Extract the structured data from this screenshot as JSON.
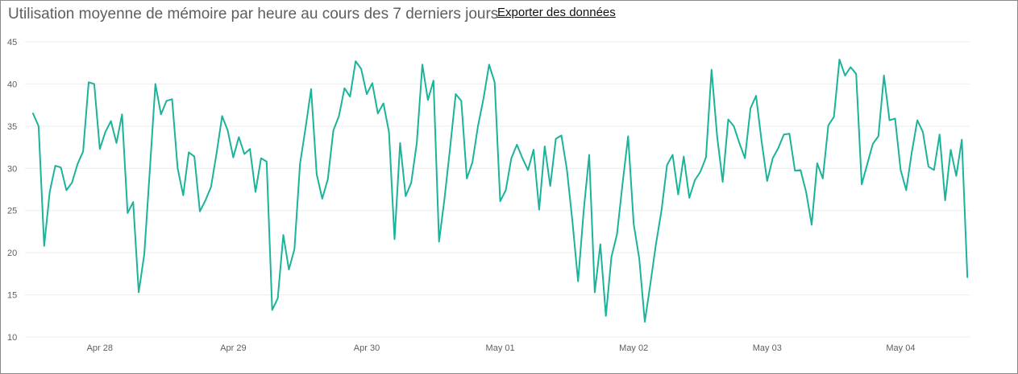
{
  "header": {
    "title": "Utilisation moyenne de mémoire par heure au cours des 7 derniers jours",
    "export_label": "Exporter des données"
  },
  "colors": {
    "line": "#1bb39a",
    "gridline": "#ececec",
    "axis_text": "#605e5c",
    "border": "#8a8a8a"
  },
  "chart_data": {
    "type": "line",
    "title": "Utilisation moyenne de mémoire par heure au cours des 7 derniers jours",
    "xlabel": "",
    "ylabel": "",
    "ylim": [
      10,
      45
    ],
    "yticks": [
      10,
      15,
      20,
      25,
      30,
      35,
      40,
      45
    ],
    "grid": true,
    "x_tick_labels": [
      {
        "label": "Apr 28",
        "x": 12
      },
      {
        "label": "Apr 29",
        "x": 36
      },
      {
        "label": "Apr 30",
        "x": 60
      },
      {
        "label": "May 01",
        "x": 84
      },
      {
        "label": "May 02",
        "x": 108
      },
      {
        "label": "May 03",
        "x": 132
      },
      {
        "label": "May 04",
        "x": 156
      }
    ],
    "x_unit": "hours since start of series (hourly samples)",
    "series": [
      {
        "values": [
          36.5,
          35.0,
          20.8,
          27.2,
          30.3,
          30.1,
          27.4,
          28.3,
          30.5,
          32.0,
          40.2,
          40.0,
          32.3,
          34.3,
          35.6,
          33.0,
          36.4,
          24.7,
          26.0,
          15.3,
          19.8,
          29.8,
          40.0,
          36.4,
          38.0,
          38.2,
          30.0,
          26.8,
          31.9,
          31.4,
          24.9,
          26.2,
          27.8,
          31.8,
          36.2,
          34.5,
          31.3,
          33.7,
          31.7,
          32.3,
          27.2,
          31.2,
          30.8,
          13.2,
          14.6,
          22.1,
          18.0,
          20.4,
          30.5,
          34.8,
          39.4,
          29.3,
          26.4,
          28.7,
          34.5,
          36.2,
          39.5,
          38.5,
          42.7,
          41.8,
          38.8,
          40.1,
          36.5,
          37.7,
          34.3,
          21.6,
          33.0,
          26.7,
          28.3,
          33.0,
          42.3,
          38.1,
          40.4,
          21.3,
          26.5,
          32.5,
          38.8,
          38.0,
          28.8,
          30.7,
          35.0,
          38.3,
          42.3,
          40.2,
          26.1,
          27.4,
          31.2,
          32.8,
          31.2,
          29.8,
          32.2,
          25.1,
          32.6,
          27.9,
          33.5,
          33.9,
          29.8,
          23.6,
          16.6,
          24.9,
          31.6,
          15.3,
          21.0,
          12.5,
          19.5,
          22.2,
          28.2,
          33.8,
          23.4,
          19.3,
          11.8,
          16.3,
          21.0,
          25.0,
          30.4,
          31.6,
          26.9,
          31.4,
          26.5,
          28.6,
          29.6,
          31.3,
          41.7,
          33.8,
          28.4,
          35.8,
          35.0,
          33.0,
          31.2,
          37.1,
          38.6,
          33.2,
          28.5,
          31.2,
          32.4,
          34.0,
          34.1,
          29.7,
          29.8,
          27.2,
          23.3,
          30.6,
          28.8,
          35.1,
          36.1,
          42.9,
          41.0,
          42.0,
          41.2,
          28.1,
          30.5,
          32.9,
          33.8,
          41.0,
          35.7,
          35.9,
          29.8,
          27.4,
          31.9,
          35.7,
          34.3,
          30.2,
          29.8,
          34.0,
          26.2,
          32.2,
          29.1,
          33.4,
          17.1
        ]
      }
    ]
  }
}
